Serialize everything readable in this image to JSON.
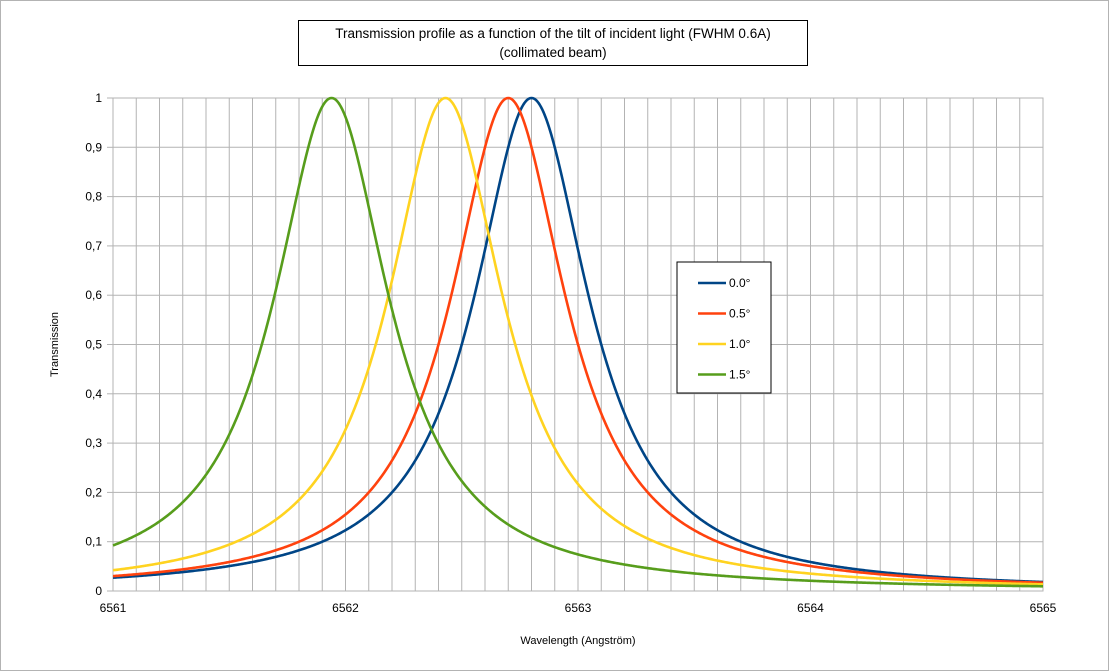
{
  "chart_data": {
    "type": "line",
    "title": "Transmission profile as a function of the tilt of incident light (FWHM 0.6A)",
    "subtitle": "(collimated beam)",
    "xlabel": "Wavelength (Angström)",
    "ylabel": "Transmission",
    "xlim": [
      6561,
      6565
    ],
    "ylim": [
      0,
      1
    ],
    "x_ticks": [
      "6561",
      "6562",
      "6563",
      "6564",
      "6565"
    ],
    "y_ticks": [
      "0",
      "0,1",
      "0,2",
      "0,3",
      "0,4",
      "0,5",
      "0,6",
      "0,7",
      "0,8",
      "0,9",
      "1"
    ],
    "grid": true,
    "legend_position": "right",
    "fwhm": 0.6,
    "series": [
      {
        "name": "0.0°",
        "color": "#004586",
        "peak_x": 6562.8,
        "peak_y": 1.0
      },
      {
        "name": "0.5°",
        "color": "#ff420e",
        "peak_x": 6562.7,
        "peak_y": 1.0
      },
      {
        "name": "1.0°",
        "color": "#ffd320",
        "peak_x": 6562.43,
        "peak_y": 1.0
      },
      {
        "name": "1.5°",
        "color": "#579d1c",
        "peak_x": 6561.94,
        "peak_y": 1.0
      }
    ]
  }
}
